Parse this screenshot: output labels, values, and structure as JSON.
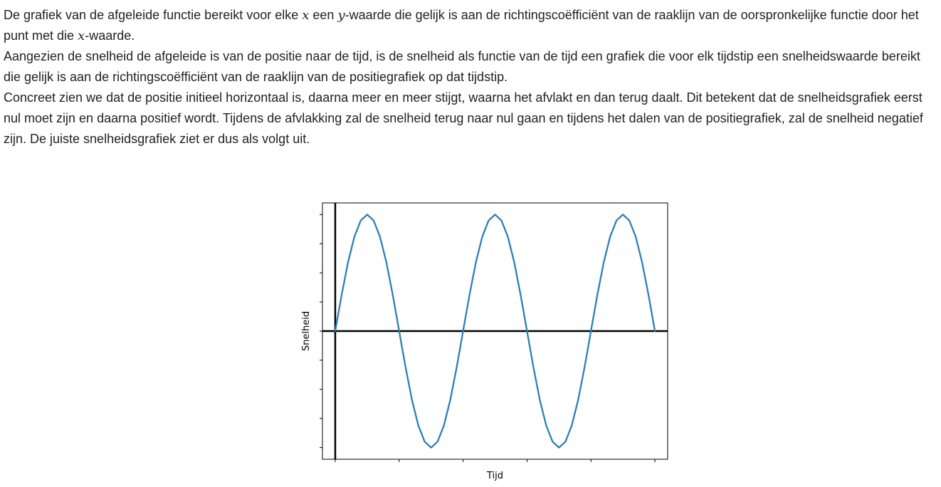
{
  "explanation": {
    "paragraph1": {
      "part1": "De grafiek van de afgeleide functie bereikt voor elke ",
      "var_x": "x",
      "part2": " een ",
      "var_y": "y",
      "part3": "-waarde die gelijk is aan de richtingscoëfficiënt van de raaklijn van de oorspronkelijke functie door het punt met die ",
      "var_x2": "x",
      "part4": "-waarde."
    },
    "paragraph2": "Aangezien de snelheid de afgeleide is van de positie naar de tijd, is de snelheid als functie van de tijd een grafiek die voor elk tijdstip een snelheidswaarde bereikt die gelijk is aan de richtingscoëfficiënt van de raaklijn van de positiegrafiek op dat tijdstip.",
    "paragraph3": "Concreet zien we dat de positie initieel horizontaal is, daarna meer en meer stijgt, waarna het afvlakt en dan terug daalt. Dit betekent dat de snelheidsgrafiek eerst nul moet zijn en daarna positief wordt. Tijdens de afvlakking zal de snelheid terug naar nul gaan en tijdens het dalen van de positiegrafiek, zal de snelheid negatief zijn. De juiste snelheidsgrafiek ziet er dus als volgt uit."
  },
  "chart_data": {
    "type": "line",
    "title": "",
    "xlabel": "Tijd",
    "ylabel": "Snelheid",
    "xlim": [
      -0.2,
      5.2
    ],
    "ylim": [
      -1.1,
      1.1
    ],
    "tick_labels_visible": false,
    "grid": false,
    "axes_lines": {
      "x_zero": true,
      "y_zero": true
    },
    "line_color": "#2e7fb8",
    "series": [
      {
        "x": [
          0,
          0.1,
          0.2,
          0.3,
          0.4,
          0.5,
          0.6,
          0.7,
          0.8,
          0.9,
          1.0,
          1.1,
          1.2,
          1.3,
          1.4,
          1.5,
          1.6,
          1.7,
          1.8,
          1.9,
          2.0,
          2.1,
          2.2,
          2.3,
          2.4,
          2.5,
          2.6,
          2.7,
          2.8,
          2.9,
          3.0,
          3.1,
          3.2,
          3.3,
          3.4,
          3.5,
          3.6,
          3.7,
          3.8,
          3.9,
          4.0,
          4.1,
          4.2,
          4.3,
          4.4,
          4.5,
          4.6,
          4.7,
          4.8,
          4.9,
          5.0
        ],
        "y": [
          0.0,
          0.31,
          0.59,
          0.81,
          0.95,
          1.0,
          0.95,
          0.81,
          0.59,
          0.31,
          0.0,
          -0.31,
          -0.59,
          -0.81,
          -0.95,
          -1.0,
          -0.95,
          -0.81,
          -0.59,
          -0.31,
          0.0,
          0.31,
          0.59,
          0.81,
          0.95,
          1.0,
          0.95,
          0.81,
          0.59,
          0.31,
          0.0,
          -0.31,
          -0.59,
          -0.81,
          -0.95,
          -1.0,
          -0.95,
          -0.81,
          -0.59,
          -0.31,
          0.0,
          0.31,
          0.59,
          0.81,
          0.95,
          1.0,
          0.95,
          0.81,
          0.59,
          0.31,
          0.0
        ]
      }
    ]
  }
}
